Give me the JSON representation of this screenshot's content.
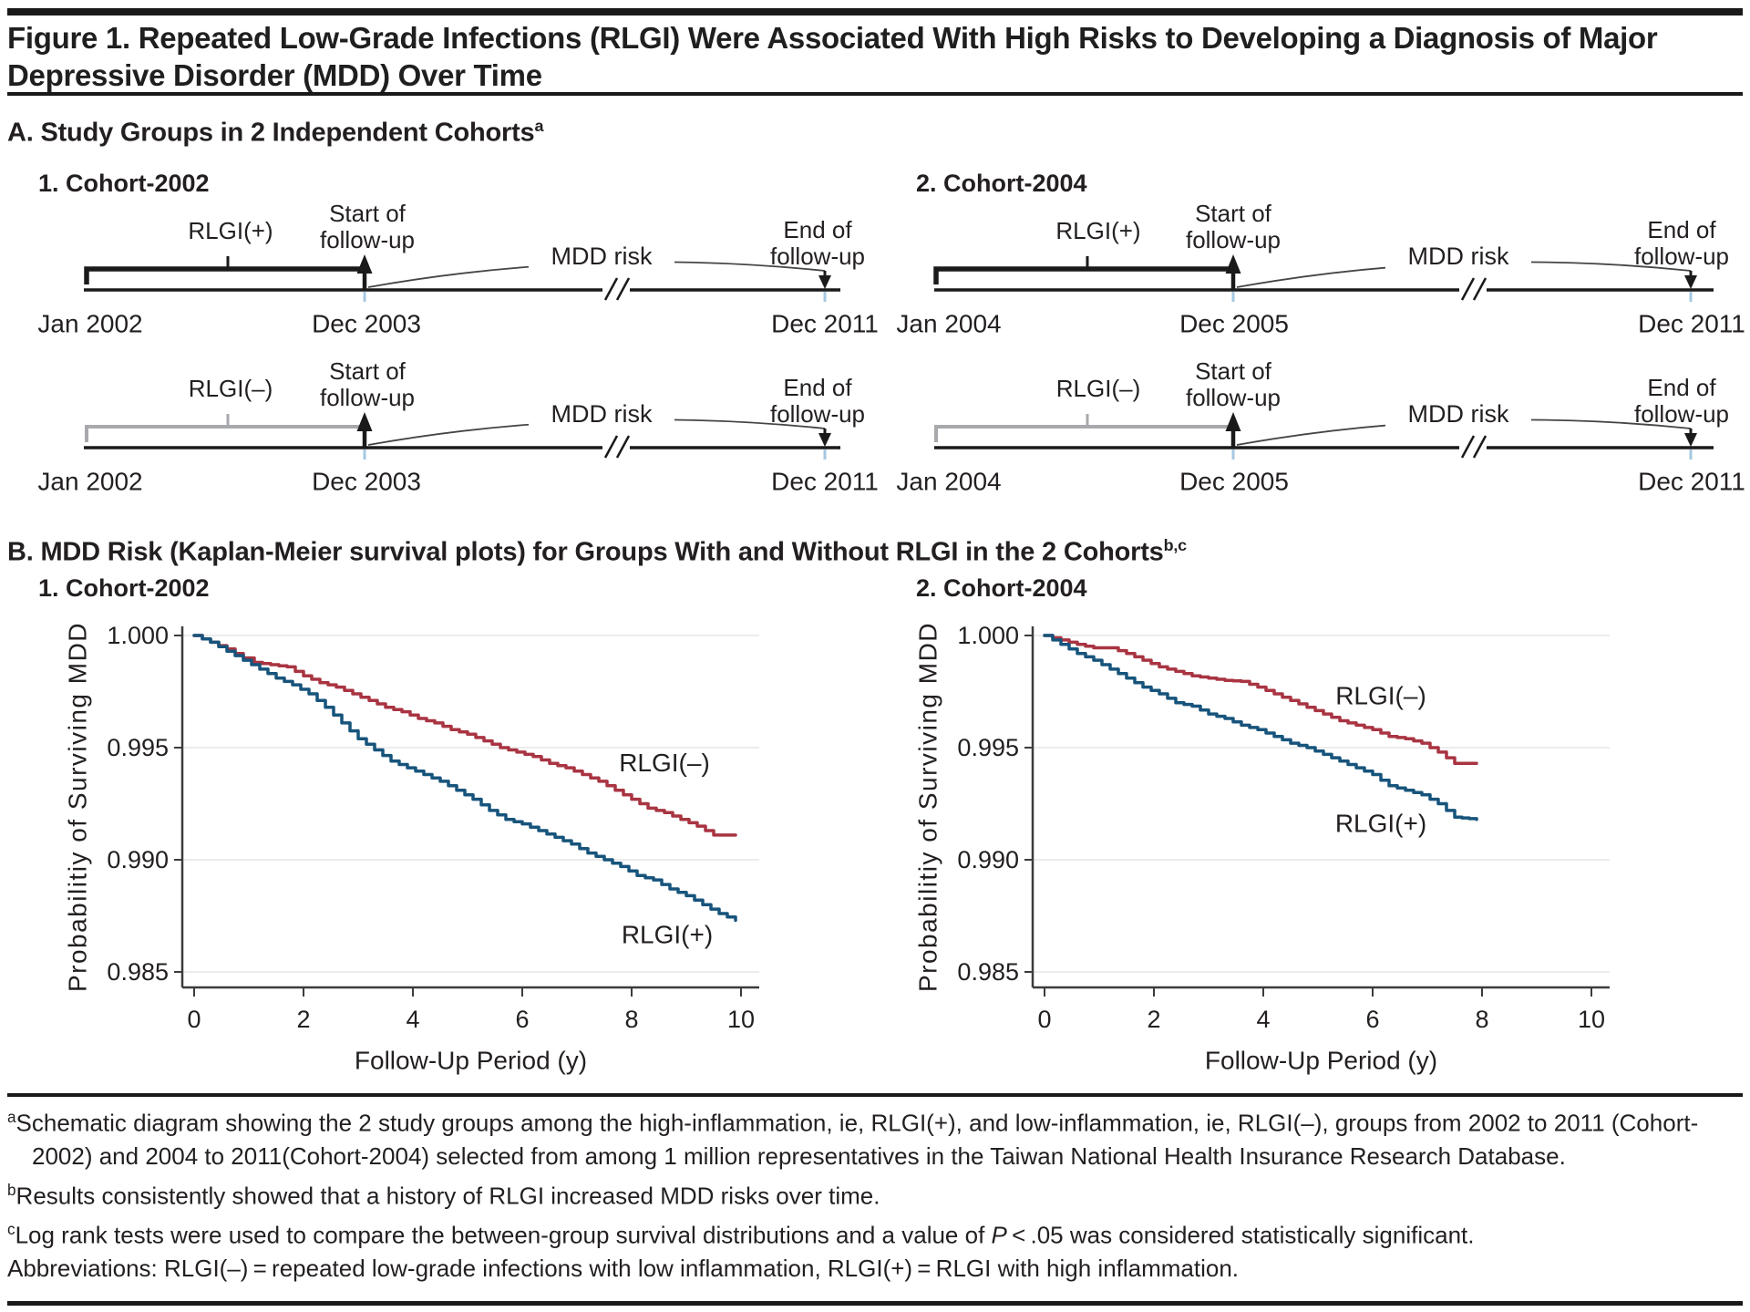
{
  "title": "Figure 1. Repeated Low-Grade Infections (RLGI) Were Associated With High Risks to Developing a Diagnosis of Major Depressive Disorder (MDD) Over Time",
  "colors": {
    "rlgi_pos_curve": "#17547c",
    "rlgi_neg_curve": "#a93442",
    "muted_gray": "#a7a9ac",
    "timeline_tick_blue": "#a5c8e1",
    "grid": "#ececec",
    "text": "#231f20",
    "rule": "#191919"
  },
  "section_a": {
    "heading": "A. Study Groups in 2 Independent Cohorts",
    "heading_sup": "a",
    "cohorts": [
      {
        "label": "1. Cohort-2002",
        "timelines": [
          {
            "group": "RLGI(+)",
            "group_color": "#231f20",
            "bracket_color": "#1a1a1a",
            "start_line1": "Start of",
            "start_line2": "follow-up",
            "end_line1": "End of",
            "end_line2": "follow-up",
            "risk_label": "MDD risk",
            "dates": [
              "Jan 2002",
              "Dec 2003",
              "Dec 2011"
            ]
          },
          {
            "group": "RLGI(–)",
            "group_color": "#a7a9ac",
            "bracket_color": "#a7a9ac",
            "start_line1": "Start of",
            "start_line2": "follow-up",
            "end_line1": "End of",
            "end_line2": "follow-up",
            "risk_label": "MDD risk",
            "dates": [
              "Jan 2002",
              "Dec 2003",
              "Dec 2011"
            ]
          }
        ]
      },
      {
        "label": "2. Cohort-2004",
        "timelines": [
          {
            "group": "RLGI(+)",
            "group_color": "#231f20",
            "bracket_color": "#1a1a1a",
            "start_line1": "Start of",
            "start_line2": "follow-up",
            "end_line1": "End of",
            "end_line2": "follow-up",
            "risk_label": "MDD risk",
            "dates": [
              "Jan 2004",
              "Dec 2005",
              "Dec 2011"
            ]
          },
          {
            "group": "RLGI(–)",
            "group_color": "#a7a9ac",
            "bracket_color": "#a7a9ac",
            "start_line1": "Start of",
            "start_line2": "follow-up",
            "end_line1": "End of",
            "end_line2": "follow-up",
            "risk_label": "MDD risk",
            "dates": [
              "Jan 2004",
              "Dec 2005",
              "Dec 2011"
            ]
          }
        ]
      }
    ]
  },
  "section_b": {
    "heading": "B. MDD Risk (Kaplan-Meier survival plots) for Groups With and Without RLGI in the 2 Cohorts",
    "heading_sup": "b,c"
  },
  "chart_data": [
    {
      "type": "line",
      "title": "1. Cohort-2002",
      "xlabel": "Follow-Up Period (y)",
      "ylabel": "Probabilitiy of Surviving MDD",
      "xlim": [
        0,
        10
      ],
      "ylim": [
        0.985,
        1.0
      ],
      "xticks": [
        0,
        2,
        4,
        6,
        8,
        10
      ],
      "yticks": [
        {
          "v": 1.0,
          "label": "1.000"
        },
        {
          "v": 0.995,
          "label": "0.995"
        },
        {
          "v": 0.99,
          "label": "0.990"
        },
        {
          "v": 0.985,
          "label": "0.985"
        }
      ],
      "grid": true,
      "series": [
        {
          "name": "RLGI(–)",
          "color": "#a93442",
          "label_pos": [
            8.6,
            0.99432
          ],
          "points": [
            [
              0,
              1.0
            ],
            [
              0.3,
              0.9997
            ],
            [
              0.6,
              0.9994
            ],
            [
              0.9,
              0.999
            ],
            [
              1.1,
              0.9988
            ],
            [
              1.4,
              0.9987
            ],
            [
              1.7,
              0.9986
            ],
            [
              2.0,
              0.9982
            ],
            [
              2.3,
              0.9979
            ],
            [
              2.6,
              0.9977
            ],
            [
              2.9,
              0.9974
            ],
            [
              3.2,
              0.9971
            ],
            [
              3.5,
              0.9968
            ],
            [
              3.8,
              0.9966
            ],
            [
              4.1,
              0.9963
            ],
            [
              4.4,
              0.9961
            ],
            [
              4.7,
              0.9958
            ],
            [
              5.0,
              0.9956
            ],
            [
              5.3,
              0.9953
            ],
            [
              5.6,
              0.995
            ],
            [
              5.9,
              0.9948
            ],
            [
              6.2,
              0.9946
            ],
            [
              6.5,
              0.9943
            ],
            [
              6.8,
              0.9941
            ],
            [
              7.1,
              0.9938
            ],
            [
              7.4,
              0.9935
            ],
            [
              7.7,
              0.9931
            ],
            [
              8.0,
              0.9927
            ],
            [
              8.3,
              0.9923
            ],
            [
              8.6,
              0.9921
            ],
            [
              8.9,
              0.9918
            ],
            [
              9.2,
              0.9915
            ],
            [
              9.5,
              0.9911
            ],
            [
              9.9,
              0.9911
            ]
          ]
        },
        {
          "name": "RLGI(+)",
          "color": "#17547c",
          "label_pos": [
            8.65,
            0.98666
          ],
          "points": [
            [
              0,
              1.0
            ],
            [
              0.3,
              0.9997
            ],
            [
              0.6,
              0.9993
            ],
            [
              0.9,
              0.9989
            ],
            [
              1.2,
              0.9985
            ],
            [
              1.5,
              0.9981
            ],
            [
              1.8,
              0.9978
            ],
            [
              2.1,
              0.9974
            ],
            [
              2.4,
              0.9968
            ],
            [
              2.7,
              0.9961
            ],
            [
              3.0,
              0.9954
            ],
            [
              3.3,
              0.9949
            ],
            [
              3.6,
              0.9944
            ],
            [
              3.9,
              0.9941
            ],
            [
              4.2,
              0.9938
            ],
            [
              4.5,
              0.9935
            ],
            [
              4.8,
              0.9931
            ],
            [
              5.1,
              0.9927
            ],
            [
              5.4,
              0.9922
            ],
            [
              5.7,
              0.9918
            ],
            [
              6.0,
              0.9916
            ],
            [
              6.3,
              0.9913
            ],
            [
              6.6,
              0.991
            ],
            [
              6.9,
              0.9907
            ],
            [
              7.2,
              0.9903
            ],
            [
              7.5,
              0.99
            ],
            [
              7.8,
              0.9897
            ],
            [
              8.1,
              0.9893
            ],
            [
              8.4,
              0.9891
            ],
            [
              8.7,
              0.9887
            ],
            [
              9.0,
              0.9884
            ],
            [
              9.3,
              0.988
            ],
            [
              9.6,
              0.9876
            ],
            [
              9.9,
              0.9873
            ]
          ]
        }
      ]
    },
    {
      "type": "line",
      "title": "2. Cohort-2004",
      "xlabel": "Follow-Up Period (y)",
      "ylabel": "Probabilitiy of Surviving MDD",
      "xlim": [
        0,
        10
      ],
      "ylim": [
        0.985,
        1.0
      ],
      "xticks": [
        0,
        2,
        4,
        6,
        8,
        10
      ],
      "yticks": [
        {
          "v": 1.0,
          "label": "1.000"
        },
        {
          "v": 0.995,
          "label": "0.995"
        },
        {
          "v": 0.99,
          "label": "0.990"
        },
        {
          "v": 0.985,
          "label": "0.985"
        }
      ],
      "grid": true,
      "series": [
        {
          "name": "RLGI(–)",
          "color": "#a93442",
          "label_pos": [
            6.15,
            0.99732
          ],
          "points": [
            [
              0,
              1.0
            ],
            [
              0.3,
              0.9998
            ],
            [
              0.6,
              0.9996
            ],
            [
              0.9,
              0.99945
            ],
            [
              1.2,
              0.99945
            ],
            [
              1.5,
              0.9992
            ],
            [
              1.8,
              0.9989
            ],
            [
              2.1,
              0.9986
            ],
            [
              2.4,
              0.9984
            ],
            [
              2.7,
              0.9982
            ],
            [
              3.0,
              0.9981
            ],
            [
              3.3,
              0.998
            ],
            [
              3.6,
              0.99795
            ],
            [
              3.9,
              0.9977
            ],
            [
              4.2,
              0.9974
            ],
            [
              4.5,
              0.9971
            ],
            [
              4.8,
              0.9968
            ],
            [
              5.1,
              0.9965
            ],
            [
              5.4,
              0.9962
            ],
            [
              5.7,
              0.996
            ],
            [
              6.0,
              0.9958
            ],
            [
              6.3,
              0.9955
            ],
            [
              6.6,
              0.9954
            ],
            [
              6.9,
              0.9952
            ],
            [
              7.2,
              0.9948
            ],
            [
              7.5,
              0.9943
            ],
            [
              7.9,
              0.9943
            ]
          ]
        },
        {
          "name": "RLGI(+)",
          "color": "#17547c",
          "label_pos": [
            6.15,
            0.99163
          ],
          "points": [
            [
              0,
              1.0
            ],
            [
              0.3,
              0.9996
            ],
            [
              0.6,
              0.9992
            ],
            [
              0.9,
              0.9989
            ],
            [
              1.2,
              0.9985
            ],
            [
              1.5,
              0.9981
            ],
            [
              1.8,
              0.9977
            ],
            [
              2.1,
              0.9974
            ],
            [
              2.4,
              0.997
            ],
            [
              2.7,
              0.99685
            ],
            [
              3.0,
              0.9965
            ],
            [
              3.3,
              0.9963
            ],
            [
              3.6,
              0.996
            ],
            [
              3.9,
              0.9958
            ],
            [
              4.2,
              0.9955
            ],
            [
              4.5,
              0.9952
            ],
            [
              4.8,
              0.995
            ],
            [
              5.1,
              0.9947
            ],
            [
              5.4,
              0.9944
            ],
            [
              5.7,
              0.9941
            ],
            [
              6.0,
              0.9938
            ],
            [
              6.3,
              0.9933
            ],
            [
              6.6,
              0.9931
            ],
            [
              6.9,
              0.9929
            ],
            [
              7.2,
              0.9925
            ],
            [
              7.5,
              0.9919
            ],
            [
              7.9,
              0.9918
            ]
          ]
        }
      ]
    }
  ],
  "footnotes": {
    "a_sup": "a",
    "a_text": "Schematic diagram showing the 2 study groups among the high-inflammation, ie, RLGI(+), and low-inflammation, ie, RLGI(–), groups from 2002 to 2011 (Cohort-2002) and 2004 to 2011(Cohort-2004) selected from among 1 million representatives in the Taiwan National Health Insurance Research Database.",
    "b_sup": "b",
    "b_text": "Results consistently showed that a history of RLGI increased MDD risks over time.",
    "c_sup": "c",
    "c_text_before": "Log rank tests were used to compare the between-group survival distributions and a value of ",
    "c_p": "P",
    "c_text_after": " < .05 was considered statistically significant.",
    "abbrev": "Abbreviations: RLGI(–) = repeated low-grade infections with low inflammation, RLGI(+) = RLGI with high inflammation."
  }
}
